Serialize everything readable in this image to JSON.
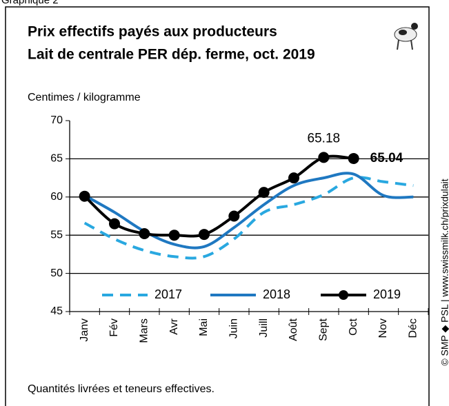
{
  "chart_data": {
    "type": "line",
    "figure_label": "Graphique 2",
    "title": "Prix effectifs payés aux producteurs",
    "subtitle": "Lait de centrale PER dép. ferme, oct. 2019",
    "y_label": "Centimes / kilogramme",
    "footnote": "Quantités livrées et teneurs effectives.",
    "source": "© SMP ◆ PSL | www.swissmilk.ch/prixdulait",
    "categories": [
      "Janv",
      "Fév",
      "Mars",
      "Avr",
      "Mai",
      "Juin",
      "Juill",
      "Août",
      "Sept",
      "Oct",
      "Nov",
      "Déc"
    ],
    "series": [
      {
        "name": "2017",
        "color": "#29a8e0",
        "dashed": true,
        "markers": false,
        "values": [
          56.6,
          54.5,
          53.0,
          52.2,
          52.2,
          54.5,
          58.0,
          59.0,
          60.3,
          62.5,
          62.0,
          61.5
        ]
      },
      {
        "name": "2018",
        "color": "#1f78c1",
        "dashed": false,
        "markers": false,
        "values": [
          60.2,
          58.0,
          55.5,
          53.8,
          53.5,
          56.0,
          59.0,
          61.5,
          62.5,
          63.0,
          60.2,
          60.0
        ]
      },
      {
        "name": "2019",
        "color": "#000000",
        "dashed": false,
        "markers": true,
        "values": [
          60.1,
          56.5,
          55.2,
          55.0,
          55.1,
          57.5,
          60.6,
          62.5,
          65.18,
          65.04,
          null,
          null
        ],
        "value_labels": [
          null,
          null,
          null,
          null,
          null,
          null,
          null,
          null,
          "65.18",
          "65.04",
          null,
          null
        ]
      }
    ],
    "ylim": [
      45,
      70
    ],
    "yticks": [
      45,
      50,
      55,
      60,
      65,
      70
    ],
    "grid": true,
    "legend": "bottom"
  }
}
